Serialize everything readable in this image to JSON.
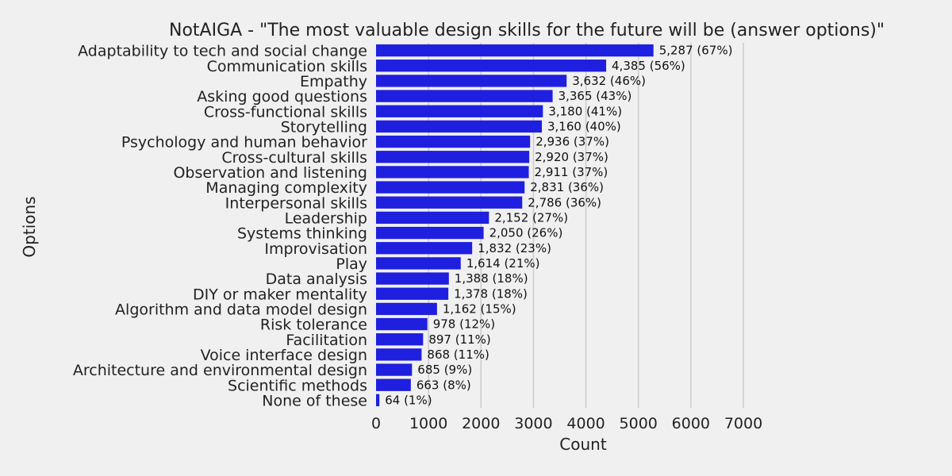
{
  "chart_data": {
    "type": "bar",
    "orientation": "horizontal",
    "title": "NotAIGA - \"The most valuable design skills for the future will be (answer options)\"",
    "xlabel": "Count",
    "ylabel": "Options",
    "xlim": [
      0,
      7000
    ],
    "xticks": [
      "0",
      "1000",
      "2000",
      "3000",
      "4000",
      "5000",
      "6000",
      "7000"
    ],
    "grid": true,
    "bar_color": "#1f1fe0",
    "categories": [
      "Adaptability to tech and social change",
      "Communication skills",
      "Empathy",
      "Asking good questions",
      "Cross-functional skills",
      "Storytelling",
      "Psychology and human behavior",
      "Cross-cultural skills",
      "Observation and listening",
      "Managing complexity",
      "Interpersonal skills",
      "Leadership",
      "Systems thinking",
      "Improvisation",
      "Play",
      "Data analysis",
      "DIY or maker mentality",
      "Algorithm and data model design",
      "Risk tolerance",
      "Facilitation",
      "Voice interface design",
      "Architecture and environmental design",
      "Scientific methods",
      "None of these"
    ],
    "values": [
      5287,
      4385,
      3632,
      3365,
      3180,
      3160,
      2936,
      2920,
      2911,
      2831,
      2786,
      2152,
      2050,
      1832,
      1614,
      1388,
      1378,
      1162,
      978,
      897,
      868,
      685,
      663,
      64
    ],
    "data_labels": [
      "5,287 (67%)",
      "4,385 (56%)",
      "3,632 (46%)",
      "3,365 (43%)",
      "3,180 (41%)",
      "3,160 (40%)",
      "2,936 (37%)",
      "2,920 (37%)",
      "2,911 (37%)",
      "2,831 (36%)",
      "2,786 (36%)",
      "2,152 (27%)",
      "2,050 (26%)",
      "1,832 (23%)",
      "1,614 (21%)",
      "1,388 (18%)",
      "1,378 (18%)",
      "1,162 (15%)",
      "978 (12%)",
      "897 (11%)",
      "868 (11%)",
      "685 (9%)",
      "663 (8%)",
      "64 (1%)"
    ]
  }
}
